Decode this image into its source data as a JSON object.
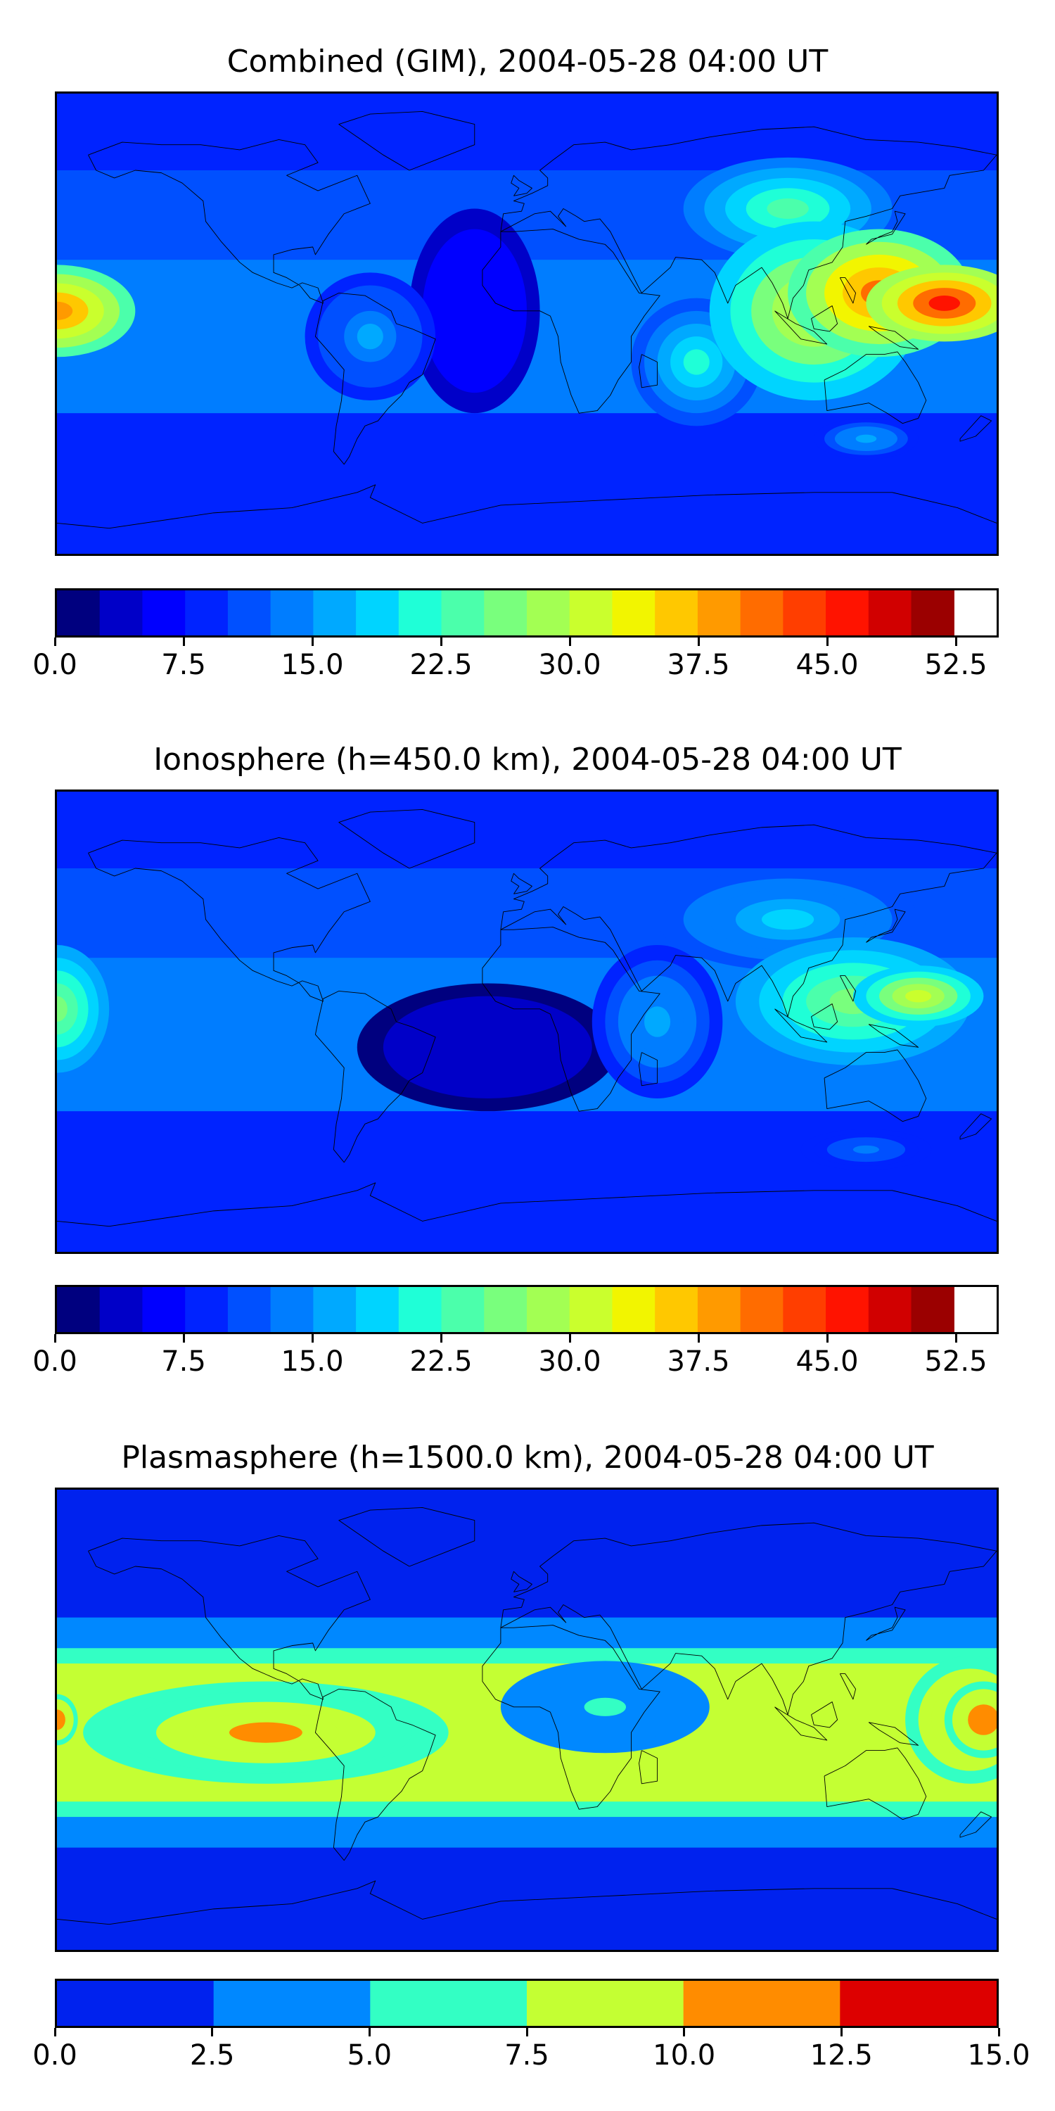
{
  "chart_data": [
    {
      "type": "heatmap",
      "title": "Combined (GIM), 2004-05-28 04:00 UT",
      "colorbar": {
        "levels": [
          0.0,
          2.5,
          5.0,
          7.5,
          10.0,
          12.5,
          15.0,
          17.5,
          20.0,
          22.5,
          25.0,
          27.5,
          30.0,
          32.5,
          35.0,
          37.5,
          40.0,
          42.5,
          45.0,
          47.5,
          50.0,
          52.5,
          55.0
        ],
        "tick_labels": [
          "0.0",
          "7.5",
          "15.0",
          "22.5",
          "30.0",
          "37.5",
          "45.0",
          "52.5"
        ],
        "tick_values": [
          0.0,
          7.5,
          15.0,
          22.5,
          30.0,
          37.5,
          45.0,
          52.5
        ],
        "colors": [
          "#00007f",
          "#0000c8",
          "#0000ff",
          "#0023ff",
          "#0050ff",
          "#007dff",
          "#00a9ff",
          "#00d4ff",
          "#1fffd7",
          "#4bffab",
          "#79ff7d",
          "#a3ff53",
          "#caff2d",
          "#f2f500",
          "#ffc800",
          "#ff9a00",
          "#ff6c00",
          "#ff3e00",
          "#ff1300",
          "#d10000",
          "#9b0000"
        ]
      },
      "features": [
        {
          "lon": -180,
          "lat": 5,
          "value": 43,
          "rx": 30,
          "ry": 18
        },
        {
          "lon": 160,
          "lat": 8,
          "value": 50,
          "rx": 30,
          "ry": 15
        },
        {
          "lon": 135,
          "lat": 12,
          "value": 45,
          "rx": 35,
          "ry": 25
        },
        {
          "lon": 110,
          "lat": 5,
          "value": 35,
          "rx": 40,
          "ry": 35
        },
        {
          "lon": 100,
          "lat": 45,
          "value": 25,
          "rx": 40,
          "ry": 20
        },
        {
          "lon": 65,
          "lat": -15,
          "value": 22,
          "rx": 25,
          "ry": 25
        },
        {
          "lon": -60,
          "lat": -5,
          "value": 17,
          "rx": 25,
          "ry": 25
        },
        {
          "lon": -20,
          "lat": 5,
          "value": 8,
          "rx": 25,
          "ry": 40
        },
        {
          "lon": 130,
          "lat": -45,
          "value": 18,
          "rx": 20,
          "ry": 8
        }
      ]
    },
    {
      "type": "heatmap",
      "title": "Ionosphere  (h=450.0 km), 2004-05-28 04:00 UT",
      "colorbar": {
        "levels": [
          0.0,
          2.5,
          5.0,
          7.5,
          10.0,
          12.5,
          15.0,
          17.5,
          20.0,
          22.5,
          25.0,
          27.5,
          30.0,
          32.5,
          35.0,
          37.5,
          40.0,
          42.5,
          45.0,
          47.5,
          50.0,
          52.5,
          55.0
        ],
        "tick_labels": [
          "0.0",
          "7.5",
          "15.0",
          "22.5",
          "30.0",
          "37.5",
          "45.0",
          "52.5"
        ],
        "tick_values": [
          0.0,
          7.5,
          15.0,
          22.5,
          30.0,
          37.5,
          45.0,
          52.5
        ],
        "colors": [
          "#00007f",
          "#0000c8",
          "#0000ff",
          "#0023ff",
          "#0050ff",
          "#007dff",
          "#00a9ff",
          "#00d4ff",
          "#1fffd7",
          "#4bffab",
          "#79ff7d",
          "#a3ff53",
          "#caff2d",
          "#f2f500",
          "#ffc800",
          "#ff9a00",
          "#ff6c00",
          "#ff3e00",
          "#ff1300",
          "#d10000",
          "#9b0000"
        ]
      },
      "features": [
        {
          "lon": 150,
          "lat": 10,
          "value": 35,
          "rx": 25,
          "ry": 12
        },
        {
          "lon": 125,
          "lat": 8,
          "value": 28,
          "rx": 45,
          "ry": 25
        },
        {
          "lon": 100,
          "lat": 40,
          "value": 20,
          "rx": 50,
          "ry": 20
        },
        {
          "lon": -180,
          "lat": 5,
          "value": 28,
          "rx": 20,
          "ry": 25
        },
        {
          "lon": 50,
          "lat": 0,
          "value": 18,
          "rx": 25,
          "ry": 30
        },
        {
          "lon": -15,
          "lat": -10,
          "value": 4,
          "rx": 50,
          "ry": 25
        },
        {
          "lon": 130,
          "lat": -50,
          "value": 15,
          "rx": 25,
          "ry": 8
        }
      ]
    },
    {
      "type": "heatmap",
      "title": "Plasmasphere (h=1500.0 km), 2004-05-28 04:00 UT",
      "colorbar": {
        "levels": [
          0.0,
          2.5,
          5.0,
          7.5,
          10.0,
          12.5,
          15.0
        ],
        "tick_labels": [
          "0.0",
          "2.5",
          "5.0",
          "7.5",
          "10.0",
          "12.5",
          "15.0"
        ],
        "tick_values": [
          0.0,
          2.5,
          5.0,
          7.5,
          10.0,
          12.5,
          15.0
        ],
        "colors": [
          "#0022ee",
          "#0088ff",
          "#33ffc4",
          "#c4ff33",
          "#ff8c00",
          "#dd0000"
        ]
      },
      "features": [
        {
          "lon": -100,
          "lat": -5,
          "value": 11,
          "rx": 70,
          "ry": 20
        },
        {
          "lon": 170,
          "lat": 0,
          "value": 12,
          "rx": 25,
          "ry": 25
        },
        {
          "lon": 175,
          "lat": 0,
          "value": 13.5,
          "rx": 15,
          "ry": 15
        },
        {
          "lon": -180,
          "lat": 0,
          "value": 13,
          "rx": 8,
          "ry": 10
        },
        {
          "lon": 30,
          "lat": 5,
          "value": 6,
          "rx": 40,
          "ry": 18
        }
      ]
    }
  ]
}
